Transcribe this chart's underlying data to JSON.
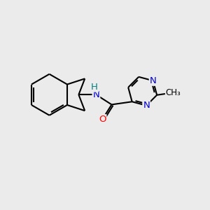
{
  "background_color": "#ebebeb",
  "bond_color": "#000000",
  "bond_width": 1.5,
  "atom_colors": {
    "N": "#0000cd",
    "O": "#ff0000",
    "NH_H": "#008080",
    "C": "#000000"
  },
  "font_size_atom": 9.5,
  "font_size_methyl": 8.5
}
